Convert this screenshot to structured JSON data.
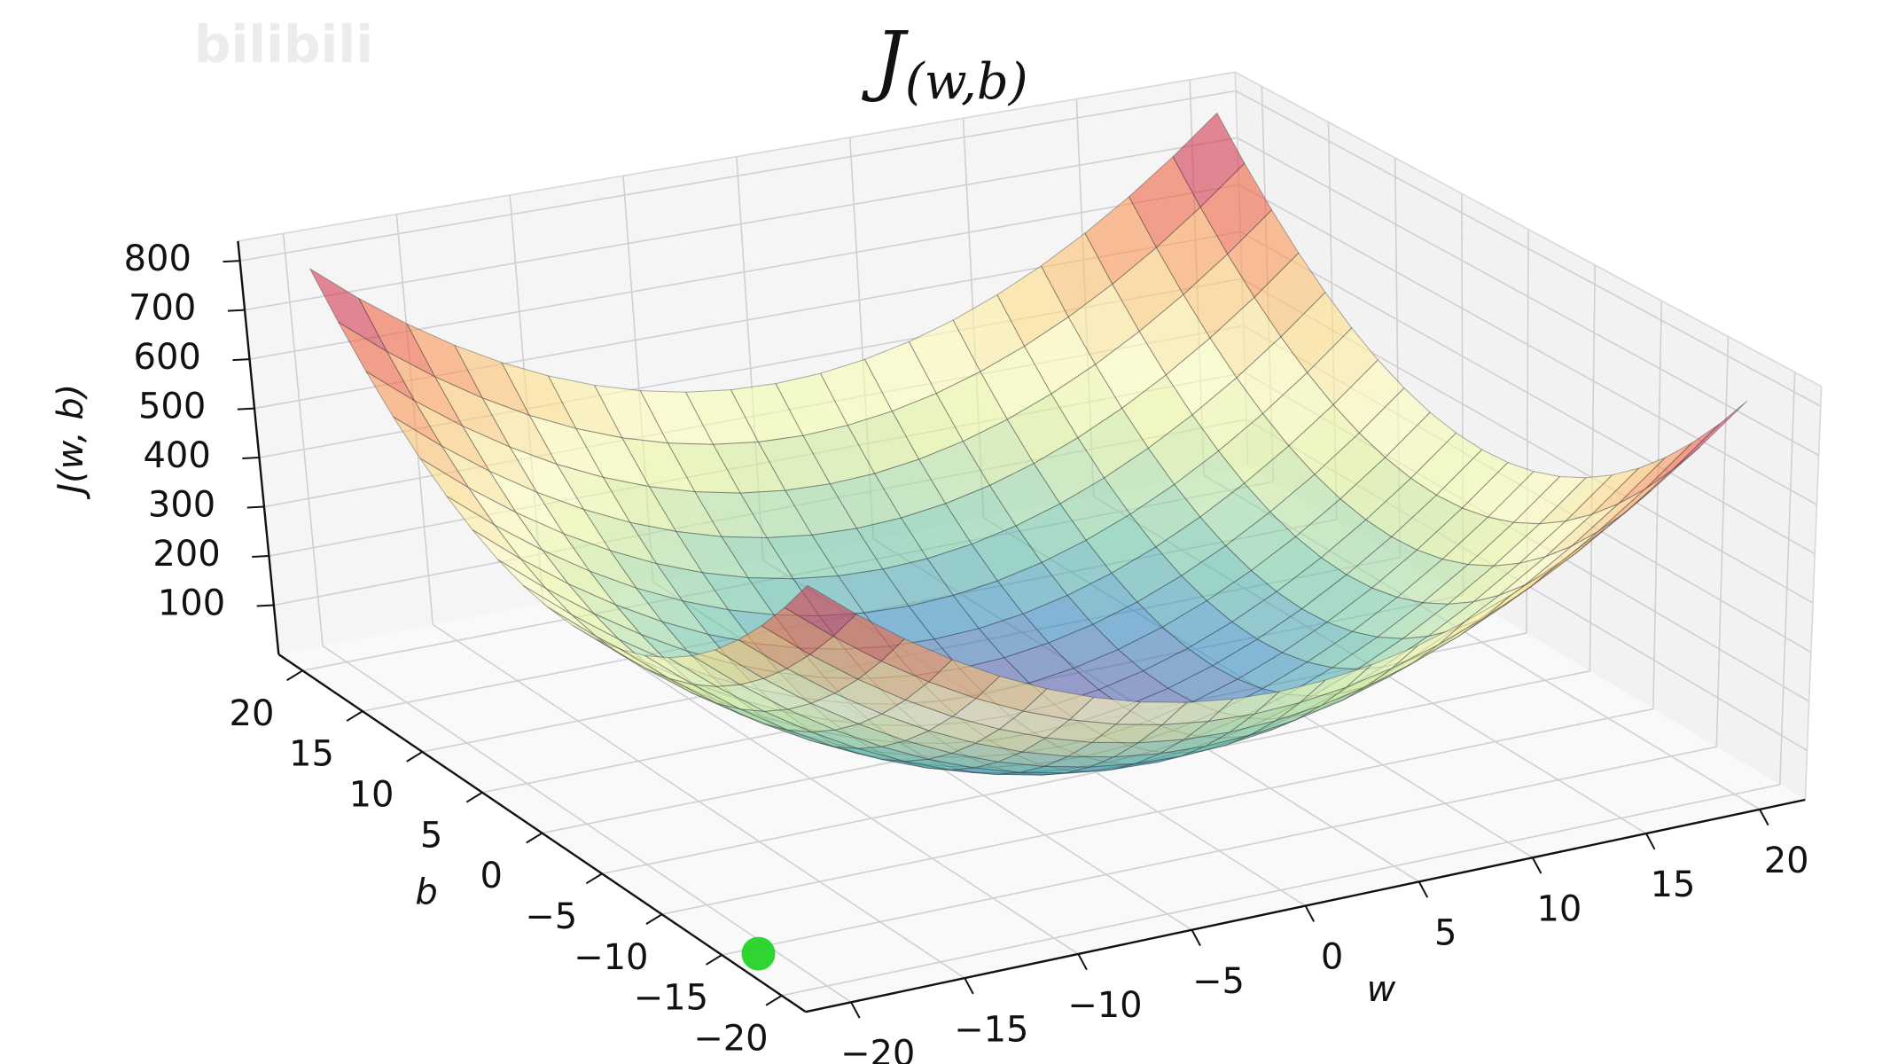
{
  "chart_data": {
    "type": "surface",
    "title": {
      "main": "J",
      "subscript": "(w,b)"
    },
    "xlabel": "w",
    "ylabel": "b",
    "zlabel": "J(w, b)",
    "x": [
      -20,
      -18,
      -16,
      -14,
      -12,
      -10,
      -8,
      -6,
      -4,
      -2,
      0,
      2,
      4,
      6,
      8,
      10,
      12,
      14,
      16,
      18,
      20
    ],
    "y": [
      -20,
      -18,
      -16,
      -14,
      -12,
      -10,
      -8,
      -6,
      -4,
      -2,
      0,
      2,
      4,
      6,
      8,
      10,
      12,
      14,
      16,
      18,
      20
    ],
    "z": [
      [
        800,
        724,
        656,
        596,
        544,
        500,
        464,
        436,
        416,
        404,
        400,
        404,
        416,
        436,
        464,
        500,
        544,
        596,
        656,
        724,
        800
      ],
      [
        724,
        648,
        580,
        520,
        468,
        424,
        388,
        360,
        340,
        328,
        324,
        328,
        340,
        360,
        388,
        424,
        468,
        520,
        580,
        648,
        724
      ],
      [
        656,
        580,
        512,
        452,
        400,
        356,
        320,
        292,
        272,
        260,
        256,
        260,
        272,
        292,
        320,
        356,
        400,
        452,
        512,
        580,
        656
      ],
      [
        596,
        520,
        452,
        392,
        340,
        296,
        260,
        232,
        212,
        200,
        196,
        200,
        212,
        232,
        260,
        296,
        340,
        392,
        452,
        520,
        596
      ],
      [
        544,
        468,
        400,
        340,
        288,
        244,
        208,
        180,
        160,
        148,
        144,
        148,
        160,
        180,
        208,
        244,
        288,
        340,
        400,
        468,
        544
      ],
      [
        500,
        424,
        356,
        296,
        244,
        200,
        164,
        136,
        116,
        104,
        100,
        104,
        116,
        136,
        164,
        200,
        244,
        296,
        356,
        424,
        500
      ],
      [
        464,
        388,
        320,
        260,
        208,
        164,
        128,
        100,
        80,
        68,
        64,
        68,
        80,
        100,
        128,
        164,
        208,
        260,
        320,
        388,
        464
      ],
      [
        436,
        360,
        292,
        232,
        180,
        136,
        100,
        72,
        52,
        40,
        36,
        40,
        52,
        72,
        100,
        136,
        180,
        232,
        292,
        360,
        436
      ],
      [
        416,
        340,
        272,
        212,
        160,
        116,
        80,
        52,
        32,
        20,
        16,
        20,
        32,
        52,
        80,
        116,
        160,
        212,
        272,
        340,
        416
      ],
      [
        404,
        328,
        260,
        200,
        148,
        104,
        68,
        40,
        20,
        8,
        4,
        8,
        20,
        40,
        68,
        104,
        148,
        200,
        260,
        328,
        404
      ],
      [
        400,
        324,
        256,
        196,
        144,
        100,
        64,
        36,
        16,
        4,
        0,
        4,
        16,
        36,
        64,
        100,
        144,
        196,
        256,
        324,
        400
      ],
      [
        404,
        328,
        260,
        200,
        148,
        104,
        68,
        40,
        20,
        8,
        4,
        8,
        20,
        40,
        68,
        104,
        148,
        200,
        260,
        328,
        404
      ],
      [
        416,
        340,
        272,
        212,
        160,
        116,
        80,
        52,
        32,
        20,
        16,
        20,
        32,
        52,
        80,
        116,
        160,
        212,
        272,
        340,
        416
      ],
      [
        436,
        360,
        292,
        232,
        180,
        136,
        100,
        72,
        52,
        40,
        36,
        40,
        52,
        72,
        100,
        136,
        180,
        232,
        292,
        360,
        436
      ],
      [
        464,
        388,
        320,
        260,
        208,
        164,
        128,
        100,
        80,
        68,
        64,
        68,
        80,
        100,
        128,
        164,
        208,
        260,
        320,
        388,
        464
      ],
      [
        500,
        424,
        356,
        296,
        244,
        200,
        164,
        136,
        116,
        104,
        100,
        104,
        116,
        136,
        164,
        200,
        244,
        296,
        356,
        424,
        500
      ],
      [
        544,
        468,
        400,
        340,
        288,
        244,
        208,
        180,
        160,
        148,
        144,
        148,
        160,
        180,
        208,
        244,
        288,
        340,
        400,
        468,
        544
      ],
      [
        596,
        520,
        452,
        392,
        340,
        296,
        260,
        232,
        212,
        200,
        196,
        200,
        212,
        232,
        260,
        296,
        340,
        392,
        452,
        520,
        596
      ],
      [
        656,
        580,
        512,
        452,
        400,
        356,
        320,
        292,
        272,
        260,
        256,
        260,
        272,
        292,
        320,
        356,
        400,
        452,
        512,
        580,
        656
      ],
      [
        724,
        648,
        580,
        520,
        468,
        424,
        388,
        360,
        340,
        328,
        324,
        328,
        340,
        360,
        388,
        424,
        468,
        520,
        580,
        648,
        724
      ],
      [
        800,
        724,
        656,
        596,
        544,
        500,
        464,
        436,
        416,
        404,
        400,
        404,
        416,
        436,
        464,
        500,
        544,
        596,
        656,
        724,
        800
      ]
    ],
    "xlim": [
      -22,
      22
    ],
    "ylim": [
      -22,
      22
    ],
    "zlim": [
      0,
      840
    ],
    "xticks": [
      {
        "value": -20,
        "label": "−20"
      },
      {
        "value": -15,
        "label": "−15"
      },
      {
        "value": -10,
        "label": "−10"
      },
      {
        "value": -5,
        "label": "−5"
      },
      0,
      5,
      10,
      15,
      20
    ],
    "yticks": [
      {
        "value": -20,
        "label": "−20"
      },
      {
        "value": -15,
        "label": "−15"
      },
      {
        "value": -10,
        "label": "−10"
      },
      {
        "value": -5,
        "label": "−5"
      },
      0,
      5,
      10,
      15,
      20
    ],
    "zticks": [
      100,
      200,
      300,
      400,
      500,
      600,
      700,
      800
    ],
    "colormap": [
      "#5e4fa2",
      "#3288bd",
      "#66c2a5",
      "#abdda4",
      "#e6f598",
      "#ffffbf",
      "#fee08b",
      "#fdae61",
      "#f46d43",
      "#d53e4f",
      "#9e0142"
    ],
    "alpha": 0.6,
    "grid": true,
    "marker": {
      "x": -20.7,
      "y": -15.6,
      "z": 0,
      "color": "#1fd11f"
    }
  },
  "watermark": "bilibili"
}
